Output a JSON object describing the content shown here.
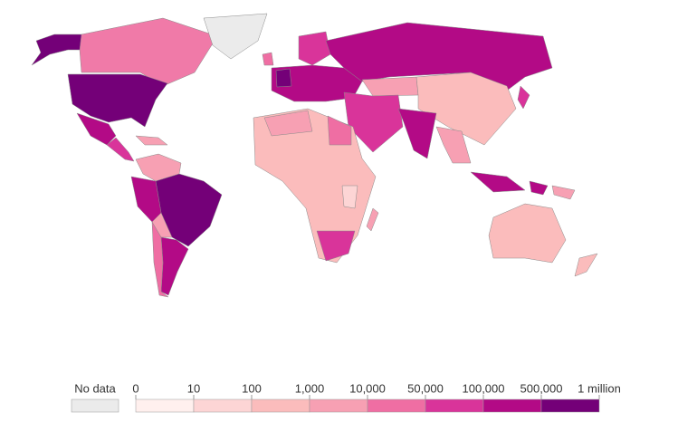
{
  "legend": {
    "no_data": {
      "label": "No data",
      "color": "#ebebeb"
    },
    "ticks": [
      "0",
      "10",
      "100",
      "1,000",
      "10,000",
      "50,000",
      "100,000",
      "500,000",
      "1 million"
    ],
    "colors": [
      "#fff0ee",
      "#fdd5d5",
      "#fbbcbc",
      "#f7a0b3",
      "#ef6ea3",
      "#d9349a",
      "#b30a86",
      "#740078"
    ]
  }
}
